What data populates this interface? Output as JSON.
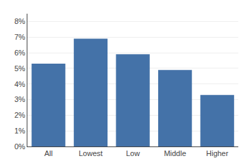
{
  "chart_data": {
    "type": "bar",
    "categories": [
      "All",
      "Lowest",
      "Low",
      "Middle",
      "Higher"
    ],
    "values": [
      0.053,
      0.069,
      0.059,
      0.049,
      0.033
    ],
    "color": "#4472A8",
    "ylim": [
      0,
      0.085
    ],
    "yticks": [
      {
        "value": 0.0,
        "label": "0%"
      },
      {
        "value": 0.01,
        "label": "1%"
      },
      {
        "value": 0.02,
        "label": "2%"
      },
      {
        "value": 0.03,
        "label": "3%"
      },
      {
        "value": 0.04,
        "label": "4%"
      },
      {
        "value": 0.05,
        "label": "5%"
      },
      {
        "value": 0.06,
        "label": "6%"
      },
      {
        "value": 0.07,
        "label": "7%"
      },
      {
        "value": 0.08,
        "label": "8%"
      }
    ],
    "grid": true
  }
}
